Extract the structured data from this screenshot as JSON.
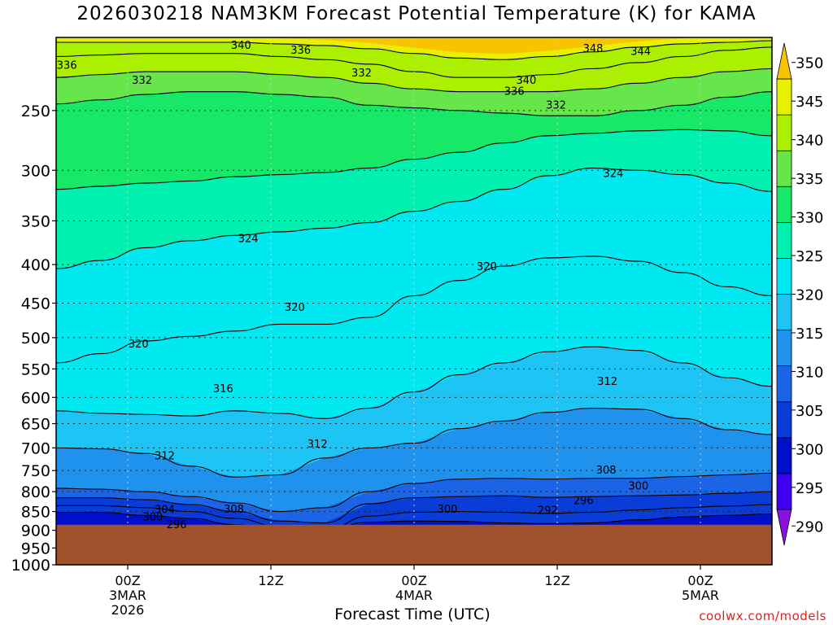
{
  "title": "2026030218 NAM3KM Forecast Potential Temperature (K) for KAMA",
  "credit": "coolwx.com/models",
  "chart_data": {
    "type": "heatmap",
    "title": "2026030218 NAM3KM Forecast Potential Temperature (K) for KAMA",
    "xlabel": "Forecast Time (UTC)",
    "ylabel": "",
    "units": "K",
    "x_range_hours": [
      0,
      60
    ],
    "y_scale": "log-pressure",
    "y_range_hpa": [
      1000,
      200
    ],
    "y_ticks": [
      "250",
      "300",
      "350",
      "400",
      "450",
      "500",
      "550",
      "600",
      "650",
      "700",
      "750",
      "800",
      "850",
      "900",
      "950",
      "1000"
    ],
    "x_ticks": [
      {
        "hour": 6,
        "lines": [
          "00Z",
          "3MAR",
          "2026"
        ]
      },
      {
        "hour": 18,
        "lines": [
          "12Z"
        ]
      },
      {
        "hour": 30,
        "lines": [
          "00Z",
          "4MAR"
        ]
      },
      {
        "hour": 42,
        "lines": [
          "12Z"
        ]
      },
      {
        "hour": 54,
        "lines": [
          "00Z",
          "5MAR"
        ]
      }
    ],
    "colorbar": {
      "labels": [
        "290",
        "295",
        "300",
        "305",
        "310",
        "315",
        "320",
        "325",
        "330",
        "335",
        "340",
        "345",
        "350"
      ],
      "min": 287.5,
      "max": 352.5,
      "colors": [
        "#8a10e0",
        "#3f00f0",
        "#0010c8",
        "#0a3cd8",
        "#1c64e6",
        "#1f92ee",
        "#1ec4f4",
        "#00e8f0",
        "#00f0b0",
        "#18e868",
        "#66e64a",
        "#aaf000",
        "#e6f000",
        "#f8c400"
      ]
    },
    "contour_interval": 4,
    "isentropes_hpa": [
      {
        "theta": 296,
        "p": [
          852,
          852,
          860,
          868,
          885,
          900,
          900,
          878,
          875,
          876,
          880,
          882,
          880,
          872,
          864,
          860,
          856
        ]
      },
      {
        "theta": 300,
        "p": [
          835,
          835,
          840,
          850,
          868,
          890,
          900,
          862,
          852,
          850,
          852,
          855,
          852,
          846,
          840,
          836,
          832
        ]
      },
      {
        "theta": 304,
        "p": [
          815,
          815,
          820,
          832,
          850,
          875,
          880,
          830,
          815,
          812,
          810,
          814,
          812,
          810,
          808,
          804,
          800
        ]
      },
      {
        "theta": 308,
        "p": [
          792,
          794,
          800,
          812,
          828,
          850,
          840,
          800,
          780,
          770,
          768,
          770,
          768,
          768,
          764,
          760,
          756
        ]
      },
      {
        "theta": 312,
        "p": [
          700,
          702,
          712,
          740,
          765,
          760,
          722,
          700,
          690,
          660,
          645,
          628,
          620,
          622,
          640,
          662,
          672
        ]
      },
      {
        "theta": 316,
        "p": [
          625,
          630,
          632,
          635,
          625,
          630,
          640,
          620,
          590,
          560,
          540,
          522,
          514,
          520,
          540,
          565,
          580
        ]
      },
      {
        "theta": 320,
        "p": [
          540,
          525,
          505,
          498,
          490,
          480,
          480,
          470,
          440,
          420,
          402,
          392,
          390,
          396,
          410,
          428,
          440
        ]
      },
      {
        "theta": 324,
        "p": [
          405,
          395,
          380,
          372,
          366,
          362,
          358,
          352,
          340,
          330,
          318,
          305,
          298,
          300,
          304,
          312,
          320
        ]
      },
      {
        "theta": 328,
        "p": [
          318,
          315,
          312,
          310,
          306,
          304,
          302,
          298,
          290,
          284,
          276,
          270,
          268,
          266,
          265,
          266,
          270
        ]
      },
      {
        "theta": 332,
        "p": [
          245,
          242,
          238,
          236,
          236,
          238,
          240,
          246,
          248,
          250,
          252,
          254,
          254,
          250,
          246,
          240,
          236
        ]
      },
      {
        "theta": 336,
        "p": [
          226,
          224,
          222,
          222,
          222,
          224,
          226,
          230,
          234,
          236,
          236,
          236,
          234,
          230,
          226,
          222,
          220
        ]
      },
      {
        "theta": 340,
        "p": [
          212,
          211,
          210,
          210,
          210,
          212,
          214,
          217,
          222,
          226,
          226,
          224,
          220,
          216,
          212,
          208,
          206
        ]
      },
      {
        "theta": 344,
        "p": [
          203,
          203,
          203,
          203,
          203,
          204,
          205,
          207,
          210,
          213,
          214,
          212,
          209,
          206,
          204,
          203,
          202
        ]
      }
    ],
    "isentrope_x_hours": [
      0,
      3.75,
      7.5,
      11.25,
      15,
      18.75,
      22.5,
      26.25,
      30,
      33.75,
      37.5,
      41.25,
      45,
      48.75,
      52.5,
      56.25,
      60
    ],
    "contour_labels": [
      {
        "text": "340",
        "hour": 15.5,
        "hpa": 205
      },
      {
        "text": "336",
        "hour": 20.5,
        "hpa": 208
      },
      {
        "text": "348",
        "hour": 45,
        "hpa": 207
      },
      {
        "text": "344",
        "hour": 49,
        "hpa": 209
      },
      {
        "text": "336",
        "hour": 0.9,
        "hpa": 218
      },
      {
        "text": "332",
        "hour": 7.2,
        "hpa": 228
      },
      {
        "text": "332",
        "hour": 25.6,
        "hpa": 223
      },
      {
        "text": "340",
        "hour": 39.4,
        "hpa": 228
      },
      {
        "text": "336",
        "hour": 38.4,
        "hpa": 236
      },
      {
        "text": "332",
        "hour": 41.9,
        "hpa": 246
      },
      {
        "text": "324",
        "hour": 46.7,
        "hpa": 303
      },
      {
        "text": "324",
        "hour": 16.1,
        "hpa": 370
      },
      {
        "text": "320",
        "hour": 36.1,
        "hpa": 403
      },
      {
        "text": "320",
        "hour": 20,
        "hpa": 456
      },
      {
        "text": "320",
        "hour": 6.9,
        "hpa": 510
      },
      {
        "text": "316",
        "hour": 14,
        "hpa": 585
      },
      {
        "text": "312",
        "hour": 46.2,
        "hpa": 572
      },
      {
        "text": "312",
        "hour": 21.9,
        "hpa": 692
      },
      {
        "text": "312",
        "hour": 9.1,
        "hpa": 718
      },
      {
        "text": "308",
        "hour": 46.1,
        "hpa": 750
      },
      {
        "text": "300",
        "hour": 48.8,
        "hpa": 787
      },
      {
        "text": "296",
        "hour": 44.2,
        "hpa": 823
      },
      {
        "text": "292",
        "hour": 41.2,
        "hpa": 848
      },
      {
        "text": "300",
        "hour": 32.8,
        "hpa": 845
      },
      {
        "text": "304",
        "hour": 9.1,
        "hpa": 846
      },
      {
        "text": "308",
        "hour": 14.9,
        "hpa": 845
      },
      {
        "text": "300",
        "hour": 8.1,
        "hpa": 865
      },
      {
        "text": "296",
        "hour": 10.1,
        "hpa": 885
      }
    ],
    "terrain": {
      "surface_hpa": 885,
      "color": "#a0522d"
    },
    "grid": true,
    "legend": "colorbar-right"
  }
}
